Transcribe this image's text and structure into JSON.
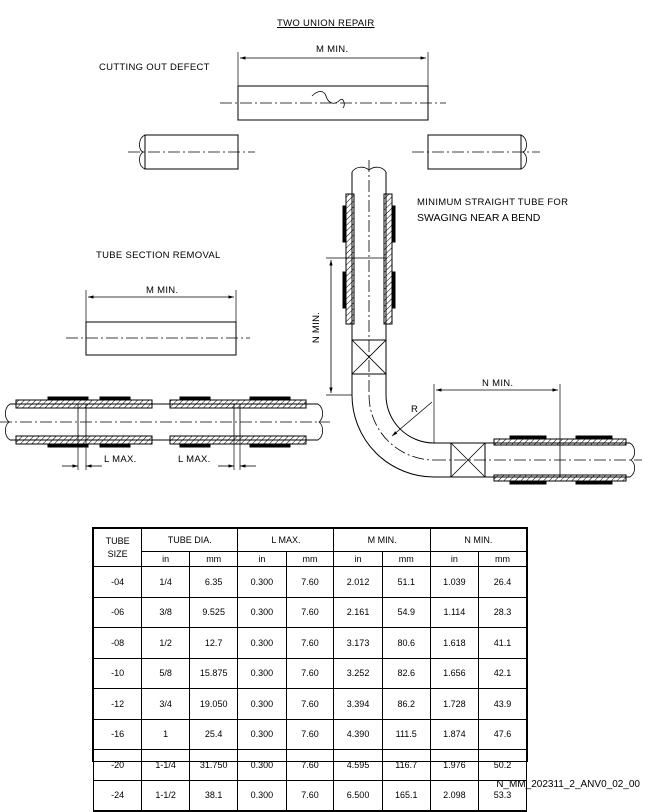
{
  "labels": {
    "title": "TWO UNION REPAIR",
    "cutting_out_defect": "CUTTING OUT DEFECT",
    "m_min_top": "M MIN.",
    "minimum_straight_tube_line1": "MINIMUM STRAIGHT TUBE FOR",
    "minimum_straight_tube_line2": "SWAGING NEAR A BEND",
    "tube_section_removal": "TUBE SECTION REMOVAL",
    "m_min_mid": "M MIN.",
    "n_min_vertical": "N MIN.",
    "n_min_horizontal": "N MIN.",
    "radius": "R",
    "l_max_left": "L MAX.",
    "l_max_right": "L MAX."
  },
  "table": {
    "headers": {
      "tube_size_line1": "TUBE",
      "tube_size_line2": "SIZE",
      "tube_dia": "TUBE DIA.",
      "l_max": "L MAX.",
      "m_min": "M MIN.",
      "n_min": "N MIN.",
      "in": "in",
      "mm": "mm"
    },
    "rows": [
      [
        "-04",
        "1/4",
        "6.35",
        "0.300",
        "7.60",
        "2.012",
        "51.1",
        "1.039",
        "26.4"
      ],
      [
        "-06",
        "3/8",
        "9.525",
        "0.300",
        "7.60",
        "2.161",
        "54.9",
        "1.114",
        "28.3"
      ],
      [
        "-08",
        "1/2",
        "12.7",
        "0.300",
        "7.60",
        "3.173",
        "80.6",
        "1.618",
        "41.1"
      ],
      [
        "-10",
        "5/8",
        "15.875",
        "0.300",
        "7.60",
        "3.252",
        "82.6",
        "1.656",
        "42.1"
      ],
      [
        "-12",
        "3/4",
        "19.050",
        "0.300",
        "7.60",
        "3.394",
        "86.2",
        "1.728",
        "43.9"
      ],
      [
        "-16",
        "1",
        "25.4",
        "0.300",
        "7.60",
        "4.390",
        "111.5",
        "1.874",
        "47.6"
      ],
      [
        "-20",
        "1-1/4",
        "31.750",
        "0.300",
        "7.60",
        "4.595",
        "116.7",
        "1.976",
        "50.2"
      ],
      [
        "-24",
        "1-1/2",
        "38.1",
        "0.300",
        "7.60",
        "6.500",
        "165.1",
        "2.098",
        "53.3"
      ]
    ]
  },
  "figure_code": "N_MM_202311_2_ANV0_02_00"
}
